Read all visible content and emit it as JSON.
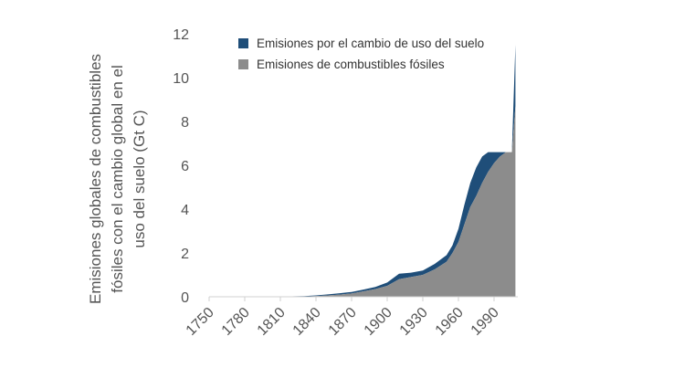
{
  "chart_data": {
    "type": "area",
    "stacked": true,
    "title": "",
    "xlabel": "",
    "ylabel_lines": [
      "Emisiones globales de combustibles",
      "fósiles con el cambio global en el",
      "uso del suelo (Gt C)"
    ],
    "ylim": [
      0,
      12
    ],
    "yticks": [
      "0",
      "2",
      "4",
      "6",
      "8",
      "10",
      "12"
    ],
    "xlim": [
      1750,
      2010
    ],
    "xticks": [
      "1750",
      "1780",
      "1810",
      "1840",
      "1870",
      "1900",
      "1930",
      "1960",
      "1990"
    ],
    "grid": false,
    "legend_position": "top",
    "x": [
      1750,
      1800,
      1830,
      1840,
      1850,
      1860,
      1870,
      1880,
      1890,
      1900,
      1910,
      1920,
      1930,
      1940,
      1950,
      1955,
      1960,
      1965,
      1970,
      1975,
      1980,
      1985,
      1990,
      1995,
      2000,
      2005,
      2008
    ],
    "series": [
      {
        "name": "Emisiones de combustibles fósiles",
        "color": "#8c8c8c",
        "values": [
          0,
          0,
          0.01,
          0.03,
          0.06,
          0.1,
          0.15,
          0.25,
          0.35,
          0.5,
          0.8,
          0.9,
          1.0,
          1.25,
          1.6,
          2.0,
          2.5,
          3.3,
          4.1,
          4.6,
          5.2,
          5.7,
          6.1,
          6.4,
          6.6,
          6.6,
          8.7
        ]
      },
      {
        "name": "Emisiones por el cambio de uso del suelo",
        "color": "#1f4e79",
        "values": [
          0,
          0,
          0.02,
          0.03,
          0.05,
          0.06,
          0.07,
          0.08,
          0.1,
          0.15,
          0.25,
          0.2,
          0.2,
          0.25,
          0.3,
          0.35,
          0.6,
          0.9,
          1.1,
          1.3,
          1.2,
          0.9,
          0.5,
          0.2,
          0,
          0,
          2.8
        ]
      }
    ]
  }
}
